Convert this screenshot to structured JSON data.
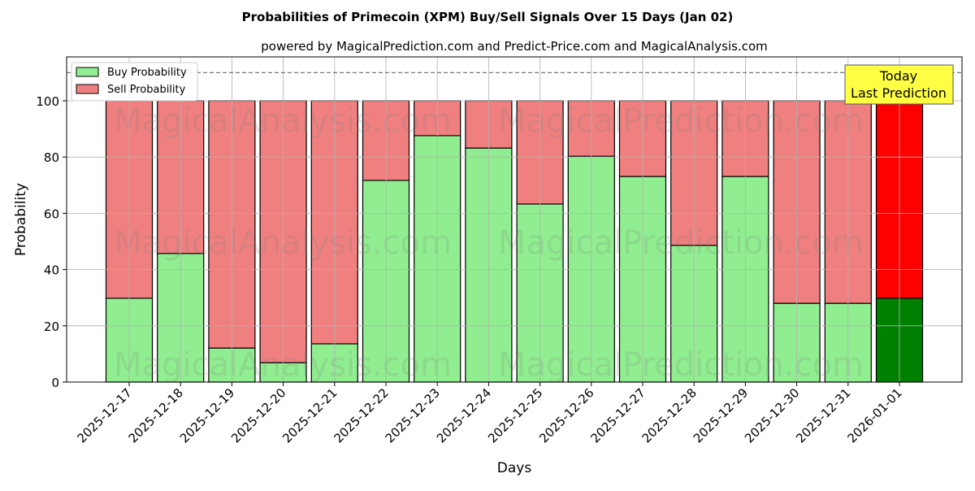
{
  "chart_data": {
    "type": "bar",
    "stacked": true,
    "title": "Probabilities of Primecoin (XPM) Buy/Sell Signals Over 15 Days (Jan 02)",
    "subtitle": "powered by MagicalPrediction.com and Predict-Price.com and MagicalAnalysis.com",
    "xlabel": "Days",
    "ylabel": "Probability",
    "ylim": [
      0,
      115.6
    ],
    "yticks": [
      0,
      20,
      40,
      60,
      80,
      100
    ],
    "grid": true,
    "legend_position": "top-left",
    "categories": [
      "2025-12-17",
      "2025-12-18",
      "2025-12-19",
      "2025-12-20",
      "2025-12-21",
      "2025-12-22",
      "2025-12-23",
      "2025-12-24",
      "2025-12-25",
      "2025-12-26",
      "2025-12-27",
      "2025-12-28",
      "2025-12-29",
      "2025-12-30",
      "2025-12-31",
      "2026-01-01"
    ],
    "series": [
      {
        "name": "Buy Probability",
        "color": "#90ee90",
        "highlight_color": "#008000",
        "values": [
          29.8,
          45.7,
          12.1,
          6.9,
          13.6,
          71.7,
          87.6,
          83.2,
          63.3,
          80.3,
          73.1,
          48.6,
          73.1,
          28.0,
          28.0,
          29.8
        ]
      },
      {
        "name": "Sell Probability",
        "color": "#f08080",
        "highlight_color": "#ff0000",
        "values": [
          70.2,
          54.3,
          87.9,
          93.1,
          86.4,
          28.3,
          12.4,
          16.8,
          36.7,
          19.7,
          26.9,
          51.4,
          26.9,
          72.0,
          72.0,
          70.2
        ]
      }
    ],
    "reference_line": {
      "y": 110,
      "style": "dashed"
    },
    "annotation": {
      "lines": [
        "Today",
        "Last Prediction"
      ],
      "color": "#ffff44"
    },
    "watermarks": [
      "MagicalAnalysis.com",
      "MagicalPrediction.com"
    ]
  }
}
